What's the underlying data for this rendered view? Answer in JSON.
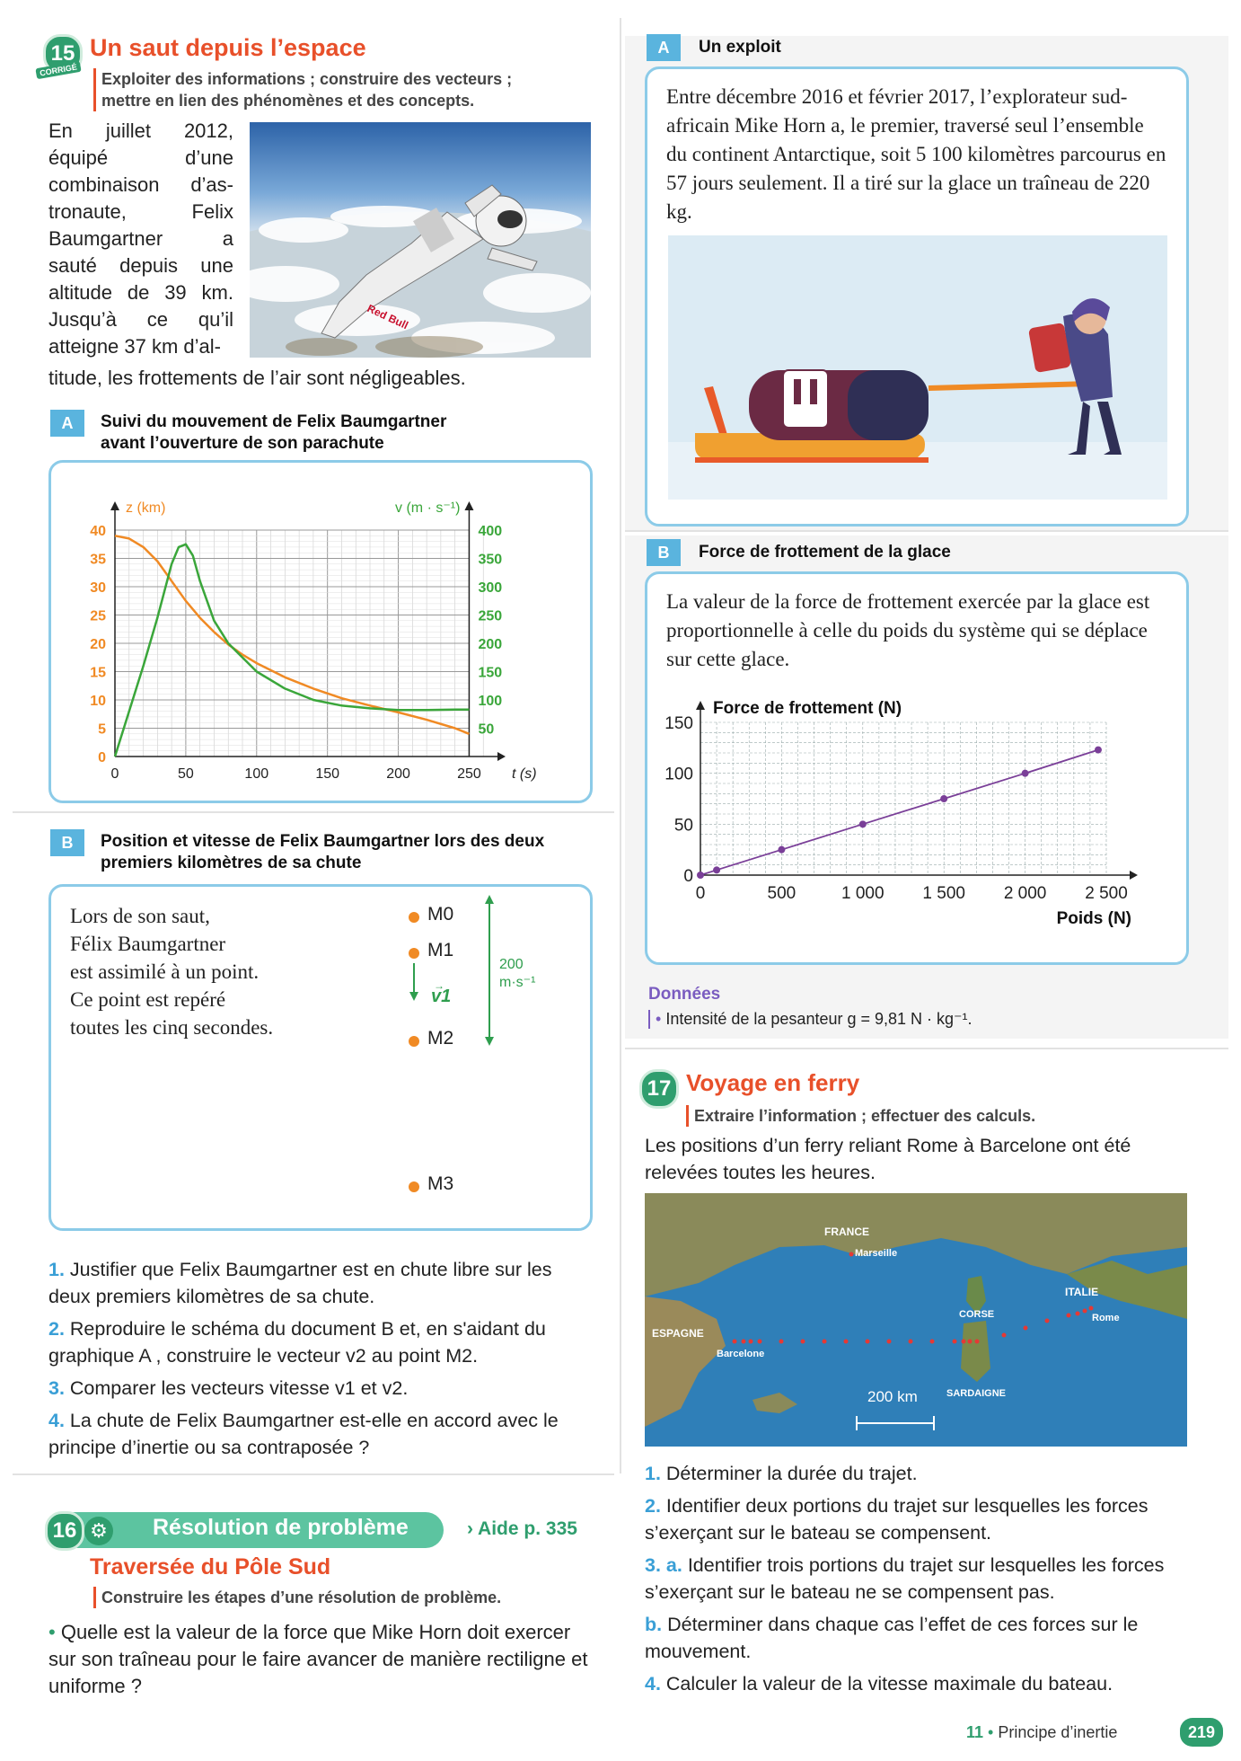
{
  "ex15": {
    "number": "15",
    "corrige": "CORRIGÉ",
    "title": "Un saut depuis l’espace",
    "skill_line1": "Exploiter des informations ; construire des vecteurs ;",
    "skill_line2": "mettre en lien des phénomènes et des concepts.",
    "intro_lines": [
      "En juillet 2012,",
      "équipé d’une",
      "combinaison d’as-",
      "tronaute, Felix",
      "Baumgartner a",
      "sauté depuis une",
      "altitude de 39 km.",
      "Jusqu’à ce qu’il",
      "atteigne 37 km d’al-"
    ],
    "intro_last": "titude, les frottements de l’air sont négligeables.",
    "photo_text": "Red Bull",
    "docA": {
      "tab": "A",
      "title_line1": "Suivi du mouvement de Felix Baumgartner",
      "title_line2": "avant l’ouverture de son parachute"
    },
    "docB": {
      "tab": "B",
      "title_line1": "Position et vitesse de Felix Baumgartner lors des deux",
      "title_line2": "premiers kilomètres de sa chute",
      "text_lines": [
        "Lors de son saut,",
        "Félix Baumgartner",
        "est assimilé à un point.",
        "Ce point est repéré",
        "toutes les cinq secondes."
      ],
      "points": [
        "M0",
        "M1",
        "M2",
        "M3"
      ],
      "vector_label": "v1",
      "scale_label": "200 m·s⁻¹"
    },
    "questions": [
      {
        "n": "1.",
        "text": "Justifier que Felix Baumgartner est en chute libre sur les deux premiers kilomètres de sa chute."
      },
      {
        "n": "2.",
        "text": "Reproduire le schéma du document B et, en s'aidant du graphique A , construire le vecteur v2 au point M2."
      },
      {
        "n": "3.",
        "text": "Comparer les vecteurs vitesse v1 et v2."
      },
      {
        "n": "4.",
        "text": "La chute de Felix Baumgartner est-elle en accord avec le principe d’inertie ou sa contraposée ?"
      }
    ]
  },
  "chart_data": [
    {
      "type": "line",
      "x_label": "t (s)",
      "x_ticks": [
        "0",
        "50",
        "100",
        "150",
        "200",
        "250"
      ],
      "xlim": [
        0,
        270
      ],
      "y_left_label": "z (km)",
      "y_left_ticks": [
        "0",
        "5",
        "10",
        "15",
        "20",
        "25",
        "30",
        "35",
        "40"
      ],
      "y_left_lim": [
        0,
        40
      ],
      "y_right_label": "v (m · s⁻¹)",
      "y_right_ticks": [
        "50",
        "100",
        "150",
        "200",
        "250",
        "300",
        "350",
        "400"
      ],
      "y_right_lim": [
        0,
        400
      ],
      "grid": true,
      "series": [
        {
          "name": "z",
          "axis": "left",
          "color": "#f08a24",
          "x": [
            0,
            10,
            20,
            30,
            40,
            50,
            60,
            70,
            80,
            90,
            100,
            120,
            140,
            160,
            180,
            200,
            220,
            240,
            250
          ],
          "y": [
            39,
            38.5,
            37,
            34.5,
            31,
            27.5,
            24.5,
            22,
            19.8,
            18,
            16.5,
            14,
            12,
            10.3,
            9,
            7.8,
            6.5,
            5,
            4
          ]
        },
        {
          "name": "v",
          "axis": "right",
          "color": "#3aa63a",
          "x": [
            0,
            10,
            20,
            30,
            40,
            45,
            50,
            55,
            60,
            70,
            80,
            90,
            100,
            120,
            140,
            160,
            180,
            200,
            220,
            240,
            250
          ],
          "y": [
            0,
            80,
            160,
            245,
            340,
            370,
            375,
            355,
            310,
            240,
            200,
            175,
            150,
            120,
            100,
            90,
            85,
            82,
            82,
            83,
            83
          ]
        }
      ]
    },
    {
      "type": "line",
      "y_label": "Force de frottement (N)",
      "x_label": "Poids (N)",
      "x_ticks": [
        "0",
        "500",
        "1 000",
        "1 500",
        "2 000",
        "2 500"
      ],
      "xlim": [
        0,
        2500
      ],
      "y_ticks": [
        "0",
        "50",
        "100",
        "150"
      ],
      "ylim": [
        0,
        150
      ],
      "grid": true,
      "series": [
        {
          "color": "#7a3f98",
          "x": [
            0,
            100,
            500,
            1000,
            1500,
            2000,
            2450
          ],
          "y": [
            0,
            5,
            25,
            50,
            75,
            100,
            123
          ]
        }
      ]
    }
  ],
  "right": {
    "docA": {
      "tab": "A",
      "title": "Un exploit",
      "text": "Entre décembre 2016 et février 2017, l’explorateur sud-africain Mike Horn a, le premier, traversé seul l’ensemble du continent Antarctique, soit 5 100 kilomètres parcourus en 57 jours seulement. Il a tiré sur la glace un traîneau de 220 kg."
    },
    "docB": {
      "tab": "B",
      "title": "Force de frottement de la glace",
      "text": "La valeur de la force de frottement exercée par la glace est proportionnelle à celle du poids du système qui se déplace sur cette glace."
    },
    "donnees_title": "Données",
    "donnees_text": "Intensité de la pesanteur g = 9,81 N · kg⁻¹."
  },
  "ex16": {
    "number": "16",
    "banner": "Résolution de problème",
    "aide": "› Aide p. 335",
    "title": "Traversée du Pôle Sud",
    "skill": "Construire les étapes d’une résolution de problème.",
    "question": "Quelle est la valeur de la force que Mike Horn doit exercer sur son traîneau pour le faire avancer de manière rectiligne et uniforme ?"
  },
  "ex17": {
    "number": "17",
    "title": "Voyage en ferry",
    "skill": "Extraire l’information ; effectuer des calculs.",
    "intro": "Les positions d’un ferry reliant Rome à Barcelone ont été relevées toutes les heures.",
    "map_labels": {
      "france": "FRANCE",
      "marseille": "Marseille",
      "italie": "ITALIE",
      "corse": "CORSE",
      "rome": "Rome",
      "espagne": "ESPAGNE",
      "barcelone": "Barcelone",
      "sardaigne": "SARDAIGNE",
      "scale": "200 km"
    },
    "questions": [
      {
        "n": "1.",
        "text": "Déterminer la durée du trajet."
      },
      {
        "n": "2.",
        "text": "Identifier deux portions du trajet sur lesquelles les forces s’exerçant sur le bateau se compensent."
      },
      {
        "n": "3. a.",
        "text": "Identifier trois portions du trajet sur lesquelles les forces s’exerçant sur le bateau ne se compensent pas."
      },
      {
        "n": "b.",
        "text": "Déterminer dans chaque cas l’effet de ces forces sur le mouvement."
      },
      {
        "n": "4.",
        "text": "Calculer la valeur de la vitesse maximale du bateau."
      }
    ]
  },
  "footer": {
    "chapter": "11",
    "chapter_title": "Principe d’inertie",
    "page": "219"
  }
}
